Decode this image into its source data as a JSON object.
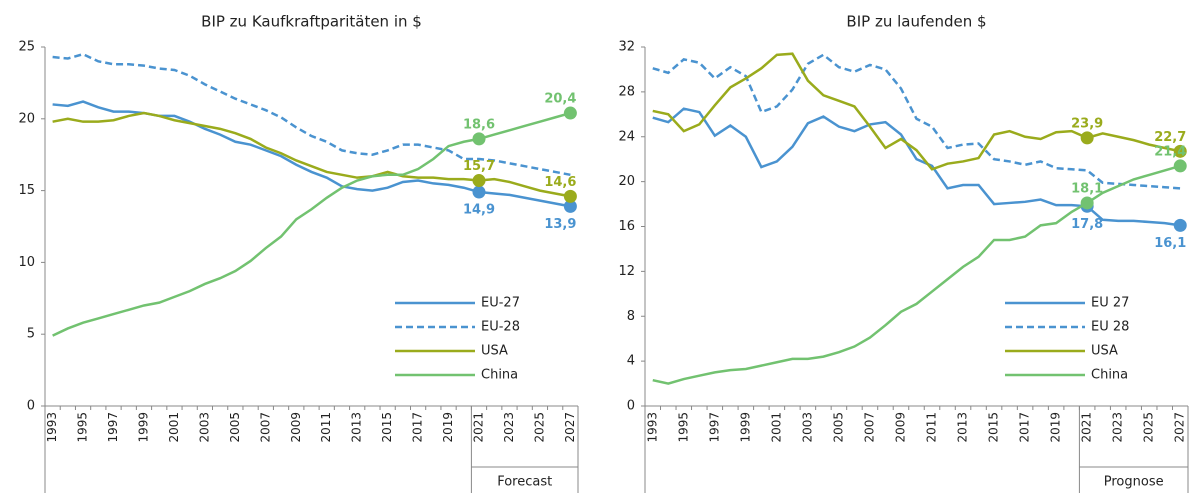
{
  "chart_data": [
    {
      "type": "line",
      "title": "BIP zu Kaufkraftparitäten in $",
      "annotation": "Forecast",
      "legend": "lower right",
      "categories": [
        "1993",
        null,
        "1995",
        null,
        "1997",
        null,
        "1999",
        null,
        "2001",
        null,
        "2003",
        null,
        "2005",
        null,
        "2007",
        null,
        "2009",
        null,
        "2011",
        null,
        "2013",
        null,
        "2015",
        null,
        "2017",
        null,
        "2019",
        null,
        "2021",
        null,
        "2023",
        null,
        "2025",
        null,
        "2027"
      ],
      "ylim": [
        0,
        25
      ],
      "yticks": [
        0,
        5,
        10,
        15,
        20,
        25
      ],
      "series": [
        {
          "name": "EU-27",
          "color": "#4a93d0",
          "linestyle": "solid",
          "values": [
            21.0,
            20.9,
            21.2,
            20.8,
            20.5,
            20.5,
            20.4,
            20.2,
            20.2,
            19.8,
            19.3,
            18.9,
            18.4,
            18.2,
            17.8,
            17.4,
            16.8,
            16.3,
            15.9,
            15.3,
            15.1,
            15.0,
            15.2,
            15.6,
            15.7,
            15.5,
            15.4,
            15.2,
            14.9,
            14.8,
            14.7,
            14.5,
            14.3,
            14.1,
            13.9
          ],
          "value_labels": [
            null,
            null,
            null,
            null,
            null,
            null,
            null,
            null,
            null,
            null,
            null,
            null,
            null,
            null,
            null,
            null,
            null,
            null,
            null,
            null,
            null,
            null,
            null,
            null,
            null,
            null,
            null,
            null,
            "14,9",
            null,
            null,
            null,
            null,
            null,
            "13,9"
          ]
        },
        {
          "name": "EU-28",
          "color": "#4a93d0",
          "linestyle": "dashed",
          "values": [
            24.3,
            24.2,
            24.5,
            24.0,
            23.8,
            23.8,
            23.7,
            23.5,
            23.4,
            23.0,
            22.4,
            21.9,
            21.4,
            21.0,
            20.6,
            20.1,
            19.4,
            18.8,
            18.4,
            17.8,
            17.6,
            17.5,
            17.8,
            18.2,
            18.2,
            18.0,
            17.8,
            17.2,
            17.2,
            17.1,
            16.9,
            16.7,
            16.5,
            16.3,
            16.1
          ]
        },
        {
          "name": "USA",
          "color": "#9aab1c",
          "linestyle": "solid",
          "values": [
            19.8,
            20.0,
            19.8,
            19.8,
            19.9,
            20.2,
            20.4,
            20.2,
            19.9,
            19.7,
            19.5,
            19.3,
            19.0,
            18.6,
            18.0,
            17.6,
            17.1,
            16.7,
            16.3,
            16.1,
            15.9,
            16.0,
            16.3,
            16.0,
            15.9,
            15.9,
            15.8,
            15.8,
            15.7,
            15.8,
            15.6,
            15.3,
            15.0,
            14.8,
            14.6
          ],
          "value_labels": [
            null,
            null,
            null,
            null,
            null,
            null,
            null,
            null,
            null,
            null,
            null,
            null,
            null,
            null,
            null,
            null,
            null,
            null,
            null,
            null,
            null,
            null,
            null,
            null,
            null,
            null,
            null,
            null,
            "15,7",
            null,
            null,
            null,
            null,
            null,
            "14,6"
          ]
        },
        {
          "name": "China",
          "color": "#72c270",
          "linestyle": "solid",
          "values": [
            4.9,
            5.4,
            5.8,
            6.1,
            6.4,
            6.7,
            7.0,
            7.2,
            7.6,
            8.0,
            8.5,
            8.9,
            9.4,
            10.1,
            11.0,
            11.8,
            13.0,
            13.7,
            14.5,
            15.2,
            15.7,
            16.0,
            16.1,
            16.1,
            16.5,
            17.2,
            18.1,
            18.4,
            18.6,
            18.9,
            19.2,
            19.5,
            19.8,
            20.1,
            20.4
          ],
          "value_labels": [
            null,
            null,
            null,
            null,
            null,
            null,
            null,
            null,
            null,
            null,
            null,
            null,
            null,
            null,
            null,
            null,
            null,
            null,
            null,
            null,
            null,
            null,
            null,
            null,
            null,
            null,
            null,
            null,
            "18,6",
            null,
            null,
            null,
            null,
            null,
            "20,4"
          ]
        }
      ]
    },
    {
      "type": "line",
      "title": "BIP zu laufenden $",
      "annotation": "Prognose",
      "legend": "lower right",
      "categories": [
        "1993",
        null,
        "1995",
        null,
        "1997",
        null,
        "1999",
        null,
        "2001",
        null,
        "2003",
        null,
        "2005",
        null,
        "2007",
        null,
        "2009",
        null,
        "2011",
        null,
        "2013",
        null,
        "2015",
        null,
        "2017",
        null,
        "2019",
        null,
        "2021",
        null,
        "2023",
        null,
        "2025",
        null,
        "2027"
      ],
      "ylim": [
        0,
        32
      ],
      "yticks": [
        0,
        4,
        8,
        12,
        16,
        20,
        24,
        28,
        32
      ],
      "series": [
        {
          "name": "EU 27",
          "color": "#4a93d0",
          "linestyle": "solid",
          "values": [
            25.7,
            25.3,
            26.5,
            26.2,
            24.1,
            25.0,
            24.0,
            21.3,
            21.8,
            23.1,
            25.2,
            25.8,
            24.9,
            24.5,
            25.1,
            25.3,
            24.2,
            22.0,
            21.4,
            19.4,
            19.7,
            19.7,
            18.0,
            18.1,
            18.2,
            18.4,
            17.9,
            17.9,
            17.8,
            16.6,
            16.5,
            16.5,
            16.4,
            16.3,
            16.1
          ],
          "value_labels": [
            null,
            null,
            null,
            null,
            null,
            null,
            null,
            null,
            null,
            null,
            null,
            null,
            null,
            null,
            null,
            null,
            null,
            null,
            null,
            null,
            null,
            null,
            null,
            null,
            null,
            null,
            null,
            null,
            "17,8",
            null,
            null,
            null,
            null,
            null,
            "16,1"
          ]
        },
        {
          "name": "EU 28",
          "color": "#4a93d0",
          "linestyle": "dashed",
          "values": [
            30.1,
            29.7,
            30.9,
            30.6,
            29.2,
            30.2,
            29.4,
            26.2,
            26.7,
            28.2,
            30.5,
            31.3,
            30.2,
            29.8,
            30.4,
            30.0,
            28.3,
            25.6,
            24.9,
            23.0,
            23.3,
            23.4,
            22.0,
            21.8,
            21.5,
            21.8,
            21.2,
            21.1,
            21.0,
            19.9,
            19.8,
            19.7,
            19.6,
            19.5,
            19.4
          ]
        },
        {
          "name": "USA",
          "color": "#9aab1c",
          "linestyle": "solid",
          "values": [
            26.3,
            26.0,
            24.5,
            25.1,
            26.8,
            28.4,
            29.2,
            30.1,
            31.3,
            31.4,
            29.0,
            27.7,
            27.2,
            26.7,
            24.9,
            23.0,
            23.8,
            22.8,
            21.1,
            21.6,
            21.8,
            22.1,
            24.2,
            24.5,
            24.0,
            23.8,
            24.4,
            24.5,
            23.9,
            24.3,
            24.0,
            23.7,
            23.3,
            23.0,
            22.7
          ],
          "value_labels": [
            null,
            null,
            null,
            null,
            null,
            null,
            null,
            null,
            null,
            null,
            null,
            null,
            null,
            null,
            null,
            null,
            null,
            null,
            null,
            null,
            null,
            null,
            null,
            null,
            null,
            null,
            null,
            null,
            "23,9",
            null,
            null,
            null,
            null,
            null,
            "22,7"
          ]
        },
        {
          "name": "China",
          "color": "#72c270",
          "linestyle": "solid",
          "values": [
            2.3,
            2.0,
            2.4,
            2.7,
            3.0,
            3.2,
            3.3,
            3.6,
            3.9,
            4.2,
            4.2,
            4.4,
            4.8,
            5.3,
            6.1,
            7.2,
            8.4,
            9.1,
            10.2,
            11.3,
            12.4,
            13.3,
            14.8,
            14.8,
            15.1,
            16.1,
            16.3,
            17.3,
            18.1,
            19.0,
            19.6,
            20.2,
            20.6,
            21.0,
            21.4
          ],
          "value_labels": [
            null,
            null,
            null,
            null,
            null,
            null,
            null,
            null,
            null,
            null,
            null,
            null,
            null,
            null,
            null,
            null,
            null,
            null,
            null,
            null,
            null,
            null,
            null,
            null,
            null,
            null,
            null,
            null,
            "18,1",
            null,
            null,
            null,
            null,
            null,
            "21,4"
          ]
        }
      ]
    }
  ]
}
